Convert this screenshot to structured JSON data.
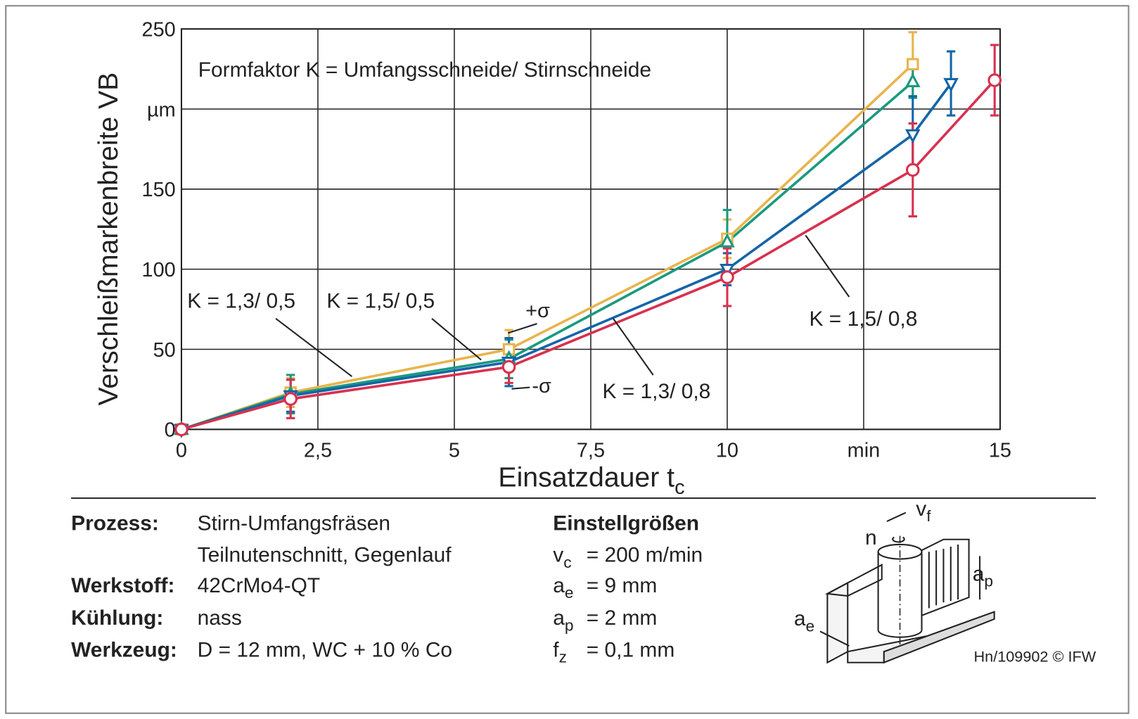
{
  "chart_data": {
    "type": "line",
    "title": "Formfaktor K = Umfangsschneide/ Stirnschneide",
    "xlabel": "Einsatzdauer t",
    "xlabel_sub": "c",
    "ylabel": "Verschleißmarkenbreite VB",
    "xlim": [
      0,
      15
    ],
    "ylim": [
      0,
      250
    ],
    "xticks": [
      0,
      {
        "value": 2.5,
        "label": "2,5"
      },
      5,
      {
        "value": 7.5,
        "label": "7,5"
      },
      10,
      {
        "value": 12.5,
        "label": "min"
      },
      15
    ],
    "yticks": [
      0,
      50,
      100,
      150,
      {
        "value": 200,
        "label": "µm"
      },
      250
    ],
    "grid": true,
    "series": [
      {
        "name": "K = 1,3/ 0,5",
        "color": "#e8b44c",
        "marker": "square",
        "x": [
          0,
          2,
          6,
          10,
          13.4
        ],
        "values": [
          0,
          23,
          50,
          119,
          228
        ],
        "errors": [
          0,
          9,
          12,
          12,
          20
        ]
      },
      {
        "name": "K = 1,5/ 0,5",
        "color": "#1a9a7e",
        "marker": "triangle-up",
        "x": [
          0,
          2,
          6,
          10,
          13.4
        ],
        "values": [
          0,
          22,
          44,
          117,
          217
        ],
        "errors": [
          0,
          12,
          12,
          20,
          10
        ]
      },
      {
        "name": "K = 1,3/ 0,8",
        "color": "#1565a8",
        "marker": "triangle-down",
        "x": [
          0,
          2,
          6,
          10,
          13.4,
          14.1
        ],
        "values": [
          0,
          21,
          42,
          100,
          184,
          216
        ],
        "errors": [
          0,
          10,
          15,
          10,
          24,
          20
        ]
      },
      {
        "name": "K = 1,5/ 0,8",
        "color": "#d8314e",
        "marker": "circle",
        "x": [
          0,
          2,
          6,
          10,
          13.4,
          14.9
        ],
        "values": [
          0,
          19,
          39,
          95,
          162,
          218
        ],
        "errors": [
          0,
          12,
          10,
          18,
          29,
          22
        ]
      }
    ],
    "annotations": [
      "+σ",
      "-σ"
    ]
  },
  "info": {
    "left": [
      {
        "label": "Prozess:",
        "lines": [
          "Stirn-Umfangsfräsen",
          "Teilnutenschnitt, Gegenlauf"
        ]
      },
      {
        "label": "Werkstoff:",
        "lines": [
          "42CrMo4-QT"
        ]
      },
      {
        "label": "Kühlung:",
        "lines": [
          "nass"
        ]
      },
      {
        "label": "Werkzeug:",
        "lines": [
          "D = 12 mm, WC + 10 % Co"
        ]
      }
    ],
    "right_title": "Einstellgrößen",
    "right": [
      {
        "symbol": "v",
        "sub": "c",
        "value": "= 200 m/min"
      },
      {
        "symbol": "a",
        "sub": "e",
        "value": "= 9 mm"
      },
      {
        "symbol": "a",
        "sub": "p",
        "value": "= 2 mm"
      },
      {
        "symbol": "f",
        "sub": "z",
        "value": "= 0,1 mm"
      }
    ],
    "diagram": {
      "vf": "v",
      "vf_sub": "f",
      "n": "n",
      "ap": "a",
      "ap_sub": "p",
      "ae": "a",
      "ae_sub": "e"
    },
    "footnote": "Hn/109902 © IFW"
  }
}
